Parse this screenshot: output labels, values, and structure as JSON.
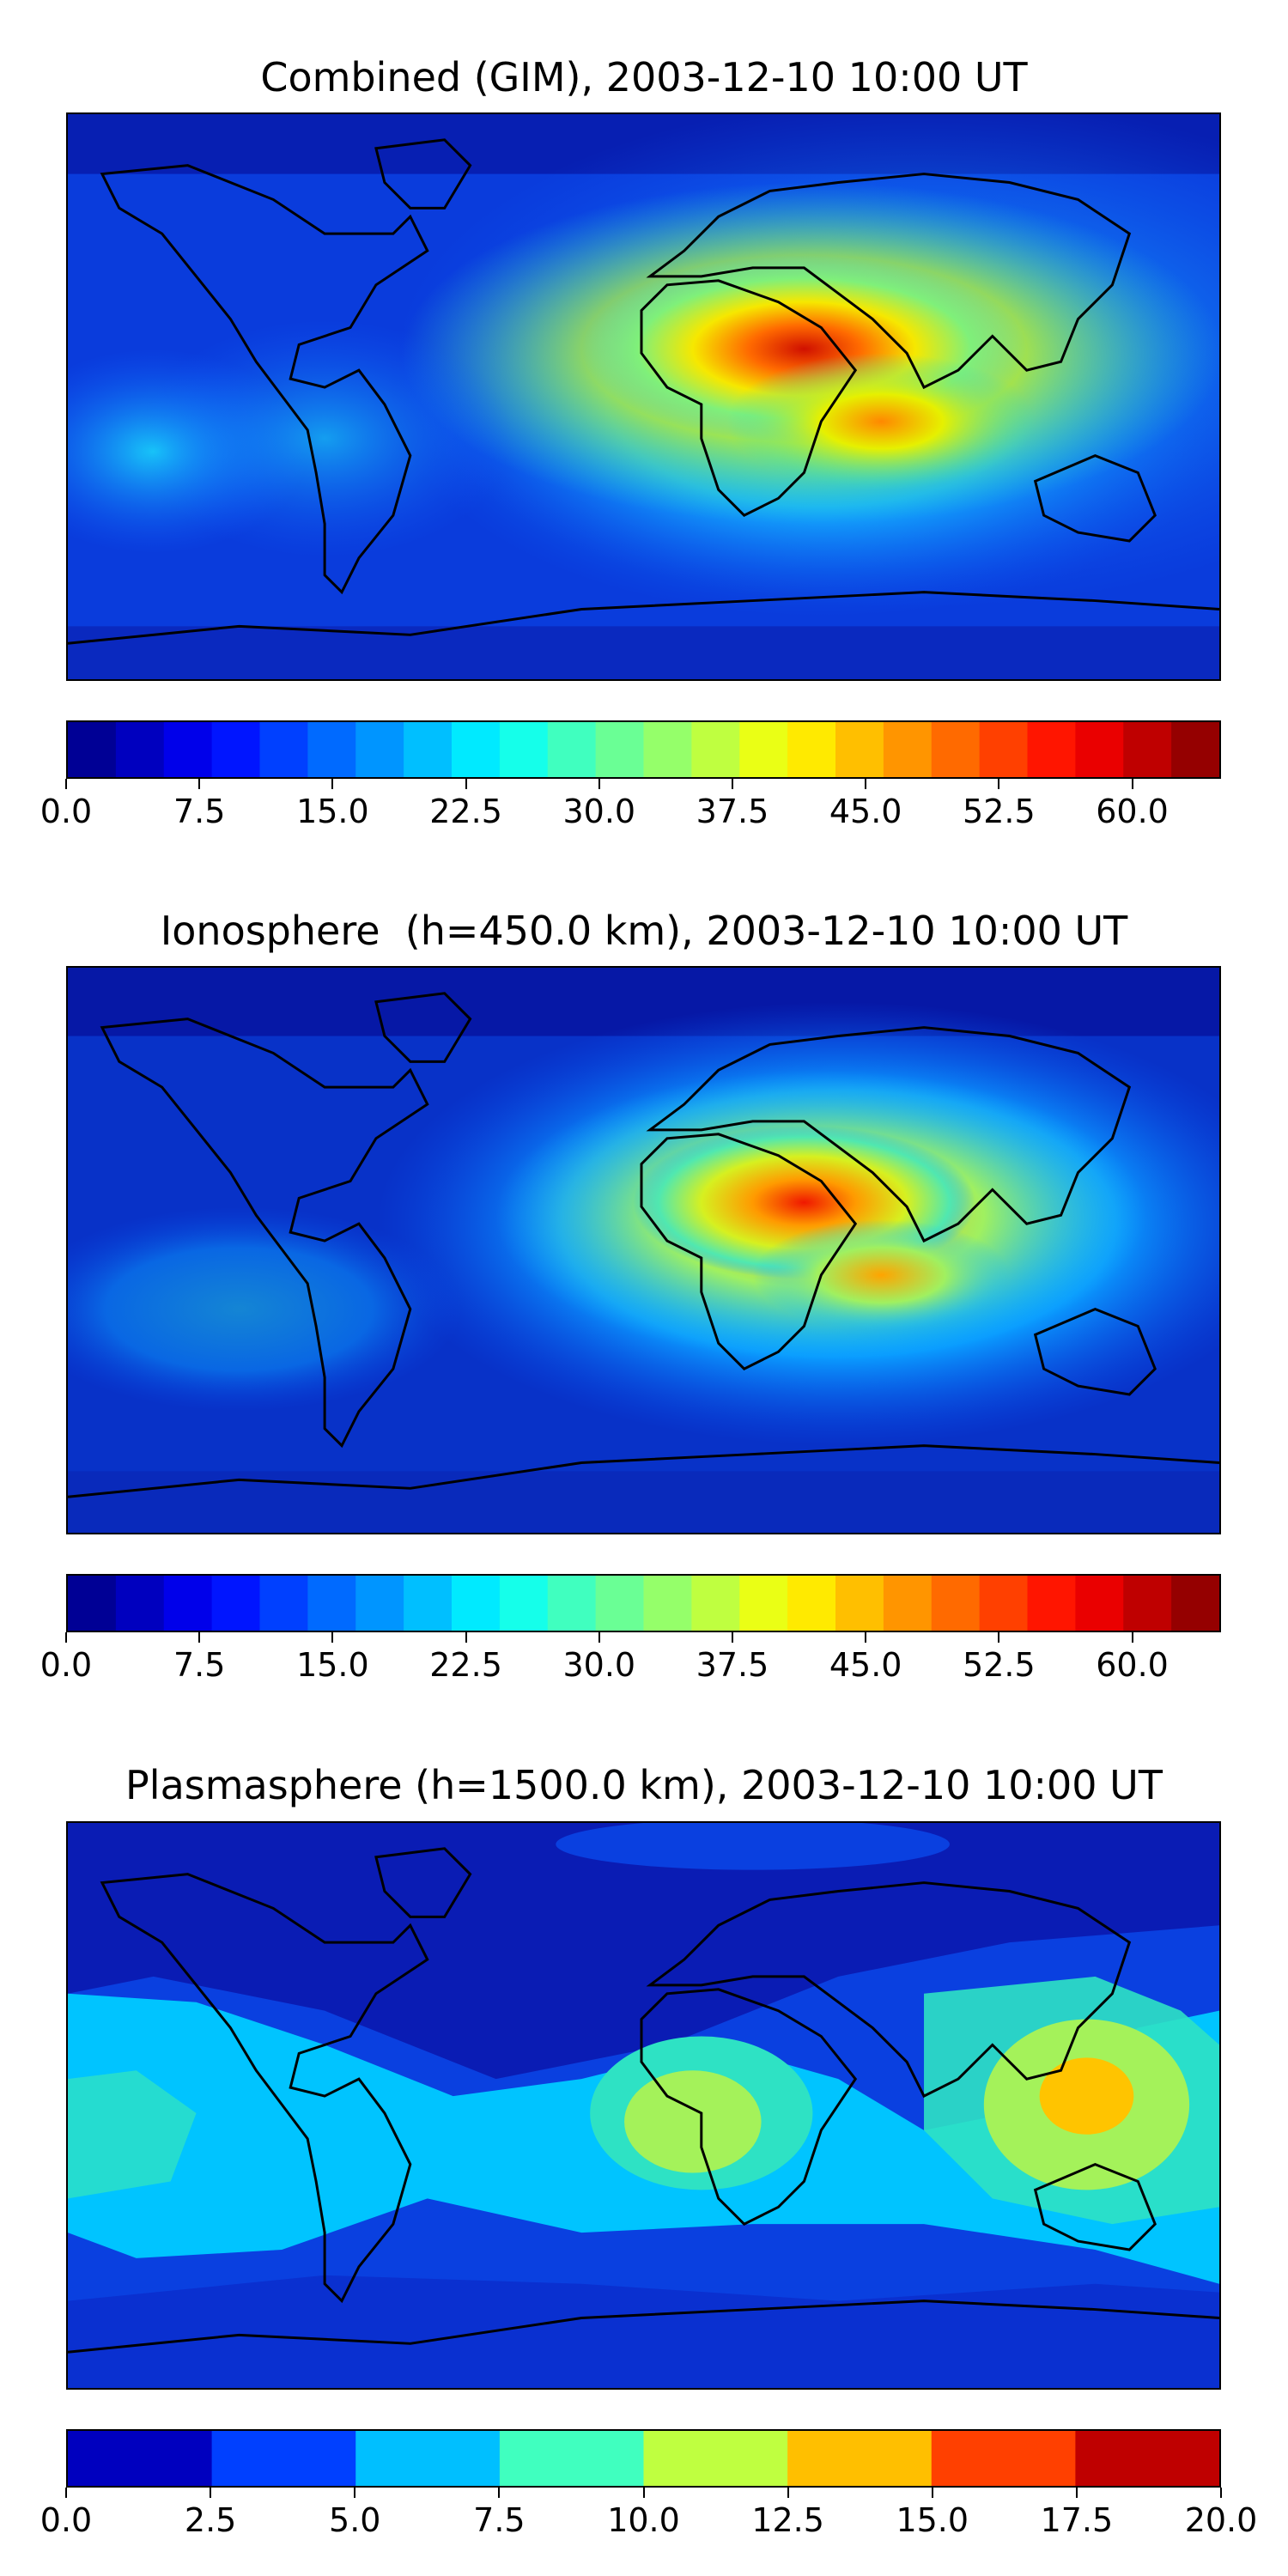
{
  "panels": [
    {
      "title": "Combined (GIM), 2003-12-10 10:00 UT",
      "palette": "jet",
      "range": [
        0,
        65
      ],
      "levels": 24,
      "tick_labels": [
        "0.0",
        "7.5",
        "15.0",
        "22.5",
        "30.0",
        "37.5",
        "45.0",
        "52.5",
        "60.0"
      ],
      "tick_values": [
        0,
        7.5,
        15,
        22.5,
        30,
        37.5,
        45,
        52.5,
        60
      ]
    },
    {
      "title": "Ionosphere  (h=450.0 km), 2003-12-10 10:00 UT",
      "palette": "jet",
      "range": [
        0,
        65
      ],
      "levels": 24,
      "tick_labels": [
        "0.0",
        "7.5",
        "15.0",
        "22.5",
        "30.0",
        "37.5",
        "45.0",
        "52.5",
        "60.0"
      ],
      "tick_values": [
        0,
        7.5,
        15,
        22.5,
        30,
        37.5,
        45,
        52.5,
        60
      ]
    },
    {
      "title": "Plasmasphere (h=1500.0 km), 2003-12-10 10:00 UT",
      "palette": "jet",
      "range": [
        0,
        20
      ],
      "levels": 8,
      "tick_labels": [
        "0.0",
        "2.5",
        "5.0",
        "7.5",
        "10.0",
        "12.5",
        "15.0",
        "17.5",
        "20.0"
      ],
      "tick_values": [
        0,
        2.5,
        5,
        7.5,
        10,
        12.5,
        15,
        17.5,
        20
      ]
    }
  ]
}
